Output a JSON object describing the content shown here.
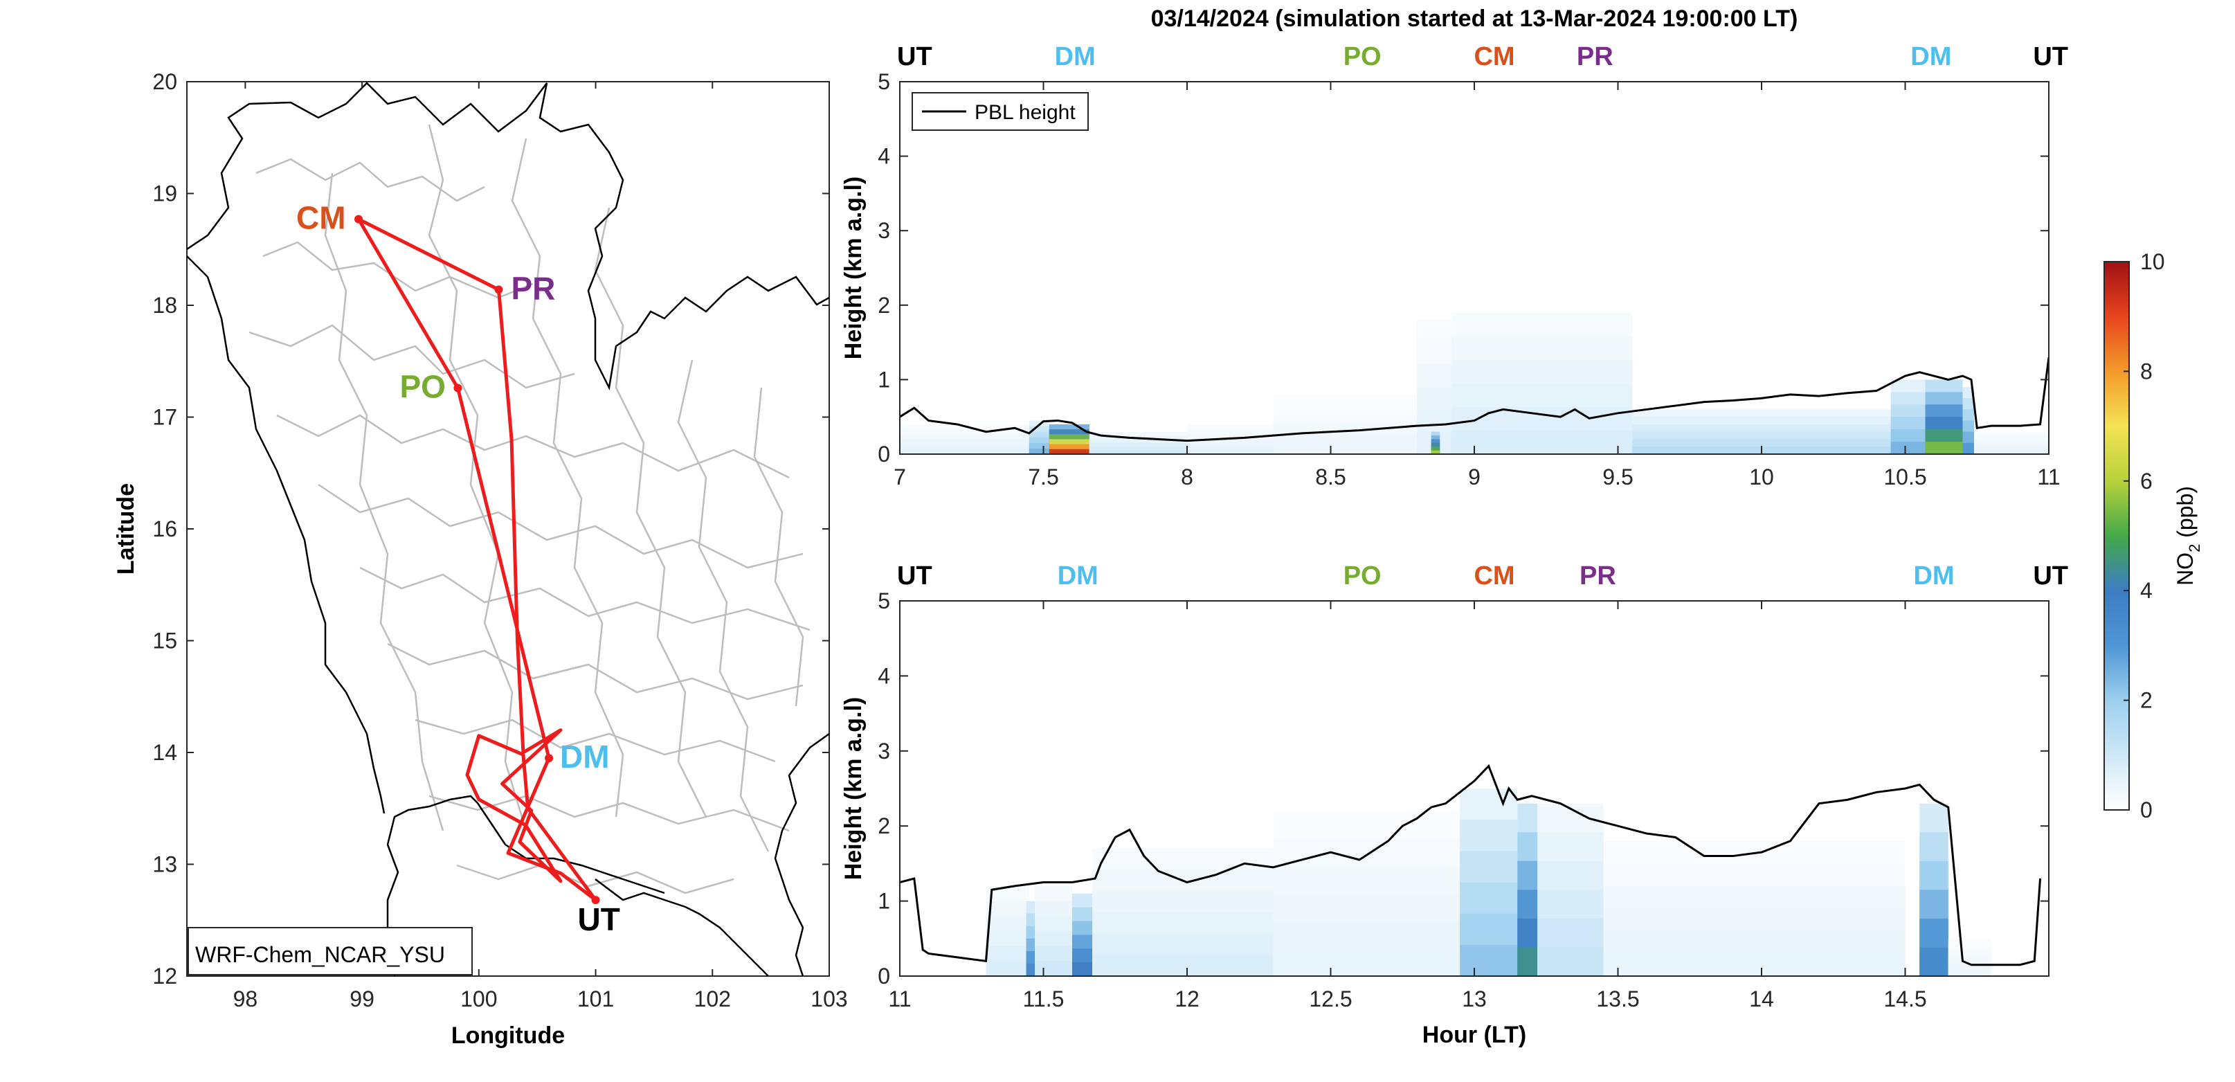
{
  "figure": {
    "title": "03/14/2024 (simulation started at 13-Mar-2024 19:00:00 LT)"
  },
  "colors": {
    "route": "#ee1c1c",
    "CM": "#d9501a",
    "PR": "#7b2d8e",
    "PO": "#77ac30",
    "DM": "#4dbeee",
    "UT": "#000000",
    "pbl_line": "#000000",
    "state_border": "#bdbdbd",
    "country_border": "#000000"
  },
  "chart_data": [
    {
      "type": "map",
      "title": "",
      "xlabel": "Longitude",
      "ylabel": "Latitude",
      "xlim": [
        97.5,
        103
      ],
      "ylim": [
        12,
        20
      ],
      "xticks": [
        "98",
        "99",
        "100",
        "101",
        "102",
        "103"
      ],
      "yticks": [
        "12",
        "13",
        "14",
        "15",
        "16",
        "17",
        "18",
        "19",
        "20"
      ],
      "model_label": "WRF-Chem_NCAR_YSU",
      "sites": [
        {
          "name": "CM",
          "lon": 98.97,
          "lat": 18.77
        },
        {
          "name": "PR",
          "lon": 100.17,
          "lat": 18.14
        },
        {
          "name": "PO",
          "lon": 99.82,
          "lat": 17.26
        },
        {
          "name": "DM",
          "lon": 100.6,
          "lat": 13.95
        },
        {
          "name": "UT",
          "lon": 101.0,
          "lat": 12.68
        }
      ],
      "flight_track": {
        "lon": [
          101.0,
          100.7,
          100.25,
          100.6,
          99.82,
          98.97,
          100.17,
          100.28,
          100.33,
          100.38,
          100.7,
          100.2,
          100.45,
          100.35,
          100.6,
          100.7,
          100.4,
          100.0,
          99.9,
          100.0,
          100.38,
          100.42,
          101.0
        ],
        "lat": [
          12.68,
          12.92,
          13.1,
          13.95,
          17.26,
          18.77,
          18.14,
          16.8,
          15.0,
          14.0,
          14.2,
          13.72,
          13.48,
          13.2,
          12.95,
          12.85,
          13.35,
          13.58,
          13.8,
          14.15,
          13.98,
          13.5,
          12.68
        ]
      }
    },
    {
      "type": "heatmap",
      "title": "",
      "xlabel": "",
      "ylabel": "Height (km a.g.l)",
      "xlim": [
        7,
        11
      ],
      "ylim": [
        0,
        5
      ],
      "xticks": [
        "7",
        "7.5",
        "8",
        "8.5",
        "9",
        "9.5",
        "10",
        "10.5",
        "11"
      ],
      "yticks": [
        "0",
        "1",
        "2",
        "3",
        "4",
        "5"
      ],
      "legend": "PBL height",
      "site_labels": [
        {
          "name": "UT",
          "x": 7.0
        },
        {
          "name": "DM",
          "x": 7.61
        },
        {
          "name": "PO",
          "x": 8.61
        },
        {
          "name": "CM",
          "x": 9.07
        },
        {
          "name": "PR",
          "x": 9.42
        },
        {
          "name": "DM",
          "x": 10.59
        },
        {
          "name": "UT",
          "x": 11.04
        }
      ],
      "pbl_height": {
        "x": [
          7.0,
          7.05,
          7.1,
          7.2,
          7.3,
          7.4,
          7.45,
          7.5,
          7.55,
          7.6,
          7.65,
          7.7,
          7.8,
          7.9,
          8.0,
          8.1,
          8.2,
          8.3,
          8.4,
          8.5,
          8.6,
          8.7,
          8.8,
          8.9,
          9.0,
          9.05,
          9.1,
          9.2,
          9.3,
          9.35,
          9.4,
          9.5,
          9.6,
          9.7,
          9.8,
          9.9,
          10.0,
          10.1,
          10.2,
          10.3,
          10.4,
          10.45,
          10.5,
          10.55,
          10.6,
          10.65,
          10.7,
          10.73,
          10.75,
          10.8,
          10.9,
          10.97,
          11.0
        ],
        "y": [
          0.5,
          0.62,
          0.45,
          0.4,
          0.3,
          0.35,
          0.28,
          0.44,
          0.45,
          0.42,
          0.3,
          0.25,
          0.22,
          0.2,
          0.18,
          0.2,
          0.22,
          0.25,
          0.28,
          0.3,
          0.32,
          0.35,
          0.38,
          0.4,
          0.45,
          0.55,
          0.6,
          0.55,
          0.5,
          0.6,
          0.48,
          0.55,
          0.6,
          0.65,
          0.7,
          0.72,
          0.75,
          0.8,
          0.78,
          0.82,
          0.85,
          0.95,
          1.05,
          1.1,
          1.05,
          1.0,
          1.05,
          1.0,
          0.35,
          0.38,
          0.38,
          0.4,
          1.3
        ]
      },
      "no2_columns": [
        {
          "x0": 7.0,
          "x1": 7.45,
          "top": 0.4,
          "value": 0.6
        },
        {
          "x0": 7.45,
          "x1": 7.52,
          "top": 0.45,
          "value": 2.5
        },
        {
          "x0": 7.52,
          "x1": 7.66,
          "top": 0.4,
          "value": 9.5
        },
        {
          "x0": 7.66,
          "x1": 8.0,
          "top": 0.3,
          "value": 1.0
        },
        {
          "x0": 8.0,
          "x1": 8.3,
          "top": 0.4,
          "value": 0.6
        },
        {
          "x0": 8.3,
          "x1": 8.8,
          "top": 0.8,
          "value": 0.4
        },
        {
          "x0": 8.8,
          "x1": 8.92,
          "top": 1.8,
          "value": 0.6
        },
        {
          "x0": 8.85,
          "x1": 8.88,
          "top": 0.3,
          "value": 6.0
        },
        {
          "x0": 8.92,
          "x1": 9.05,
          "top": 0.45,
          "value": 5.5
        },
        {
          "x0": 9.05,
          "x1": 9.15,
          "top": 0.6,
          "value": 3.5
        },
        {
          "x0": 9.15,
          "x1": 9.32,
          "top": 0.45,
          "value": 9.8
        },
        {
          "x0": 9.32,
          "x1": 9.42,
          "top": 0.5,
          "value": 4.5
        },
        {
          "x0": 8.92,
          "x1": 9.55,
          "top": 1.9,
          "value": 0.8
        },
        {
          "x0": 9.55,
          "x1": 10.45,
          "top": 0.6,
          "value": 1.5
        },
        {
          "x0": 10.45,
          "x1": 10.57,
          "top": 1.0,
          "value": 2.5
        },
        {
          "x0": 10.57,
          "x1": 10.7,
          "top": 1.0,
          "value": 5.5
        },
        {
          "x0": 10.7,
          "x1": 10.74,
          "top": 0.9,
          "value": 3.0
        },
        {
          "x0": 10.74,
          "x1": 11.0,
          "top": 0.3,
          "value": 0.5
        }
      ]
    },
    {
      "type": "heatmap",
      "title": "",
      "xlabel": "Hour (LT)",
      "ylabel": "Height (km a.g.l)",
      "xlim": [
        11,
        15
      ],
      "ylim": [
        0,
        5
      ],
      "xticks": [
        "11",
        "11.5",
        "12",
        "12.5",
        "13",
        "13.5",
        "14",
        "14.5"
      ],
      "yticks": [
        "0",
        "1",
        "2",
        "3",
        "4",
        "5"
      ],
      "site_labels": [
        {
          "name": "UT",
          "x": 11.0
        },
        {
          "name": "DM",
          "x": 11.62
        },
        {
          "name": "PO",
          "x": 12.61
        },
        {
          "name": "CM",
          "x": 13.07
        },
        {
          "name": "PR",
          "x": 13.43
        },
        {
          "name": "DM",
          "x": 14.6
        },
        {
          "name": "UT",
          "x": 15.0
        }
      ],
      "pbl_height": {
        "x": [
          11.0,
          11.05,
          11.08,
          11.1,
          11.2,
          11.3,
          11.32,
          11.4,
          11.5,
          11.6,
          11.68,
          11.7,
          11.75,
          11.8,
          11.85,
          11.9,
          12.0,
          12.1,
          12.2,
          12.3,
          12.4,
          12.5,
          12.6,
          12.7,
          12.75,
          12.8,
          12.85,
          12.9,
          12.95,
          13.0,
          13.05,
          13.1,
          13.12,
          13.15,
          13.2,
          13.25,
          13.3,
          13.4,
          13.5,
          13.6,
          13.7,
          13.8,
          13.9,
          14.0,
          14.1,
          14.2,
          14.3,
          14.4,
          14.5,
          14.55,
          14.6,
          14.65,
          14.7,
          14.73,
          14.8,
          14.9,
          14.95,
          14.97
        ],
        "y": [
          1.25,
          1.3,
          0.35,
          0.3,
          0.25,
          0.2,
          1.15,
          1.2,
          1.25,
          1.25,
          1.3,
          1.5,
          1.85,
          1.95,
          1.6,
          1.4,
          1.25,
          1.35,
          1.5,
          1.45,
          1.55,
          1.65,
          1.55,
          1.8,
          2.0,
          2.1,
          2.25,
          2.3,
          2.45,
          2.6,
          2.8,
          2.3,
          2.5,
          2.35,
          2.4,
          2.35,
          2.3,
          2.1,
          2.0,
          1.9,
          1.85,
          1.6,
          1.6,
          1.65,
          1.8,
          2.3,
          2.35,
          2.45,
          2.5,
          2.55,
          2.35,
          2.25,
          0.2,
          0.15,
          0.15,
          0.15,
          0.2,
          1.3
        ]
      },
      "no2_columns": [
        {
          "x0": 11.3,
          "x1": 11.45,
          "top": 1.2,
          "value": 0.8
        },
        {
          "x0": 11.44,
          "x1": 11.47,
          "top": 1.0,
          "value": 3.5
        },
        {
          "x0": 11.47,
          "x1": 11.6,
          "top": 1.2,
          "value": 1.0
        },
        {
          "x0": 11.6,
          "x1": 11.67,
          "top": 1.1,
          "value": 4.0
        },
        {
          "x0": 11.67,
          "x1": 12.3,
          "top": 1.7,
          "value": 0.8
        },
        {
          "x0": 12.3,
          "x1": 12.95,
          "top": 2.2,
          "value": 0.5
        },
        {
          "x0": 12.95,
          "x1": 13.15,
          "top": 2.5,
          "value": 2.2
        },
        {
          "x0": 13.15,
          "x1": 13.22,
          "top": 2.3,
          "value": 4.5
        },
        {
          "x0": 13.22,
          "x1": 13.45,
          "top": 2.3,
          "value": 1.2
        },
        {
          "x0": 13.45,
          "x1": 14.5,
          "top": 1.8,
          "value": 0.5
        },
        {
          "x0": 14.55,
          "x1": 14.65,
          "top": 2.3,
          "value": 3.5
        },
        {
          "x0": 14.65,
          "x1": 14.8,
          "top": 0.5,
          "value": 0.4
        }
      ]
    },
    {
      "type": "colorbar",
      "label": "NO2 (ppb)",
      "label_main": "NO",
      "label_sub": "2",
      "label_unit": " (ppb)",
      "range": [
        0,
        10
      ],
      "ticks": [
        "0",
        "2",
        "4",
        "6",
        "8",
        "10"
      ],
      "colormap": [
        "#ffffff",
        "#cfe8f7",
        "#9ccfee",
        "#4f95d4",
        "#3d7dc2",
        "#45a84a",
        "#b8d23a",
        "#f4e254",
        "#f39a2a",
        "#e8441e",
        "#a01015"
      ]
    }
  ]
}
